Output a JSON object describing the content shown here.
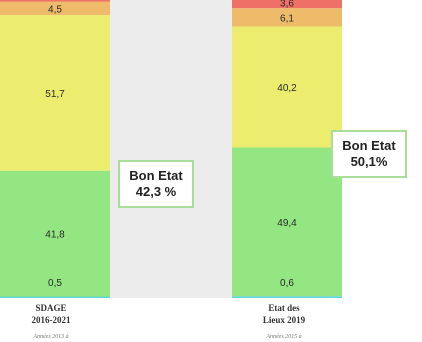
{
  "chart_data": {
    "type": "bar",
    "stacked": true,
    "categories": [
      "SDAGE 2016-2021",
      "Etat des Lieux 2019"
    ],
    "category_lines": [
      [
        "SDAGE",
        "2016-2021"
      ],
      [
        "Etat des",
        "Lieux 2019"
      ]
    ],
    "category_sublines": [
      "Années 2013 à",
      "Années 2015 à"
    ],
    "series": [
      {
        "values": [
          0.5,
          0.6
        ],
        "labels": [
          "0,5",
          "0,6"
        ],
        "color": "#5fd6d6"
      },
      {
        "values": [
          41.8,
          49.4
        ],
        "labels": [
          "41,8",
          "49,4"
        ],
        "color": "#93e682"
      },
      {
        "values": [
          51.7,
          40.2
        ],
        "labels": [
          "51,7",
          "40,2"
        ],
        "color": "#ecec6e"
      },
      {
        "values": [
          4.5,
          6.1
        ],
        "labels": [
          "4,5",
          "6,1"
        ],
        "color": "#eebb6a"
      },
      {
        "values": [
          1.5,
          3.6
        ],
        "labels": [
          "",
          "3,6"
        ],
        "color": "#ee7066"
      }
    ],
    "ylim": [
      0,
      100
    ],
    "grid": false,
    "callouts": [
      {
        "line1": "Bon Etat",
        "line2": "42,3 %"
      },
      {
        "line1": "Bon Etat",
        "line2": "50,1%"
      }
    ]
  }
}
